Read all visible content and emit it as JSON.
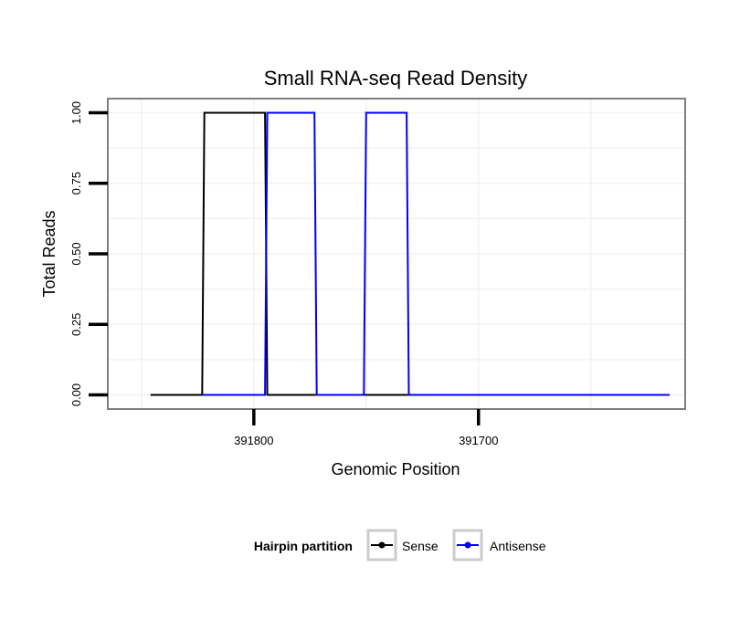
{
  "chart_data": {
    "type": "line",
    "title": "Small RNA-seq Read Density",
    "xlabel": "Genomic Position",
    "ylabel": "Total Reads",
    "x_reversed": true,
    "xlim": [
      391865,
      391608
    ],
    "ylim": [
      -0.05,
      1.05
    ],
    "x_ticks": [
      391800,
      391700
    ],
    "x_tick_labels": [
      "391800",
      "391700"
    ],
    "y_ticks": [
      0,
      0.25,
      0.5,
      0.75,
      1
    ],
    "y_tick_labels": [
      "0.00",
      "0.25",
      "0.50",
      "0.75",
      "1.00"
    ],
    "grid": true,
    "legend": {
      "title": "Hairpin partition",
      "position": "bottom",
      "entries": [
        "Sense",
        "Antisense"
      ]
    },
    "series": [
      {
        "name": "Sense",
        "color": "#000000",
        "x": [
          391846,
          391823,
          391822,
          391795,
          391794,
          391615
        ],
        "y": [
          0,
          0,
          1,
          1,
          0,
          0
        ]
      },
      {
        "name": "Antisense",
        "color": "#0000ff",
        "x": [
          391823,
          391795,
          391794,
          391773,
          391772,
          391751,
          391750,
          391732,
          391731,
          391615
        ],
        "y": [
          0,
          0,
          1,
          1,
          0,
          0,
          1,
          1,
          0,
          0
        ]
      }
    ]
  }
}
